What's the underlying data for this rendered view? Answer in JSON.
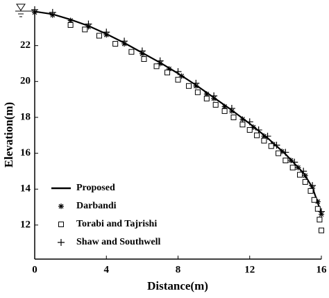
{
  "chart_data": {
    "type": "scatter",
    "x_label": "Distance(m)",
    "y_label": "Elevation(m)",
    "xlim": [
      0,
      16
    ],
    "ylim": [
      10.1,
      24
    ],
    "xticks": [
      0,
      4,
      8,
      12,
      16
    ],
    "yticks": [
      12,
      14,
      16,
      18,
      20,
      22
    ],
    "legend": "lower left",
    "series": [
      {
        "name": "Proposed",
        "marker": "line",
        "color": "#000000",
        "x": [
          0,
          1,
          2,
          3,
          4,
          5,
          6,
          7,
          8,
          9,
          10,
          11,
          12,
          13,
          14,
          15,
          15.5,
          16
        ],
        "y": [
          23.9,
          23.75,
          23.45,
          23.1,
          22.65,
          22.15,
          21.6,
          21.05,
          20.45,
          19.8,
          19.1,
          18.4,
          17.65,
          16.85,
          15.95,
          14.9,
          14.1,
          12.65
        ]
      },
      {
        "name": "Darbandi",
        "marker": "asterisk",
        "color": "#000000",
        "x": [
          0,
          1,
          2,
          3,
          4,
          5,
          6,
          7,
          7.5,
          8.2,
          9,
          9.6,
          10,
          10.6,
          11,
          11.6,
          12.2,
          12.8,
          13.3,
          13.8,
          14.3,
          14.7,
          15.1,
          15.5,
          15.8,
          16
        ],
        "y": [
          23.85,
          23.7,
          23.4,
          23.05,
          22.6,
          22.1,
          21.55,
          21.0,
          20.7,
          20.3,
          19.75,
          19.3,
          19.05,
          18.6,
          18.35,
          17.9,
          17.45,
          16.95,
          16.5,
          16.1,
          15.6,
          15.2,
          14.75,
          14.05,
          13.3,
          12.6
        ]
      },
      {
        "name": "Torabi and Tajrishi",
        "marker": "square",
        "color": "#000000",
        "x": [
          2,
          2.8,
          3.6,
          4.5,
          5.4,
          6.1,
          6.8,
          7.4,
          8,
          8.6,
          9.1,
          9.6,
          10.1,
          10.6,
          11.1,
          11.6,
          12,
          12.4,
          12.8,
          13.2,
          13.6,
          14,
          14.4,
          14.8,
          15.1,
          15.4,
          15.6,
          15.8,
          15.9,
          16
        ],
        "y": [
          23.15,
          22.9,
          22.55,
          22.1,
          21.65,
          21.25,
          20.85,
          20.5,
          20.1,
          19.75,
          19.4,
          19.05,
          18.7,
          18.35,
          18.0,
          17.6,
          17.3,
          17.0,
          16.7,
          16.4,
          16.0,
          15.6,
          15.2,
          14.8,
          14.4,
          13.9,
          13.4,
          12.9,
          12.3,
          11.7
        ]
      },
      {
        "name": "Shaw and Southwell",
        "marker": "plus",
        "color": "#000000",
        "x": [
          0,
          1,
          3,
          4,
          5,
          6,
          7,
          8,
          9,
          10,
          11,
          12,
          12.5,
          13,
          13.5,
          14,
          14.5,
          15,
          15.5,
          16
        ],
        "y": [
          24.0,
          23.85,
          23.2,
          22.75,
          22.25,
          21.7,
          21.15,
          20.55,
          19.9,
          19.2,
          18.5,
          17.75,
          17.3,
          16.95,
          16.45,
          16.05,
          15.5,
          15.0,
          14.2,
          12.75
        ]
      }
    ]
  }
}
